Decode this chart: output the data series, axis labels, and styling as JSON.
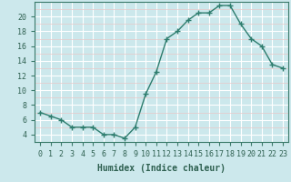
{
  "x_values": [
    0,
    1,
    2,
    3,
    4,
    5,
    6,
    7,
    8,
    9,
    10,
    11,
    12,
    13,
    14,
    15,
    16,
    17,
    18,
    19,
    20,
    21,
    22,
    23
  ],
  "y_values": [
    7,
    6.5,
    6,
    5,
    5,
    5,
    4,
    4,
    3.5,
    5,
    9.5,
    12.5,
    17,
    18,
    19.5,
    20.5,
    20.5,
    21.5,
    21.5,
    19,
    17,
    16,
    13.5,
    13
  ],
  "xlabel": "Humidex (Indice chaleur)",
  "line_color": "#2e7d6e",
  "marker": "+",
  "bg_color": "#cce8ec",
  "grid_major_color": "#ffffff",
  "grid_minor_color": "#e8c8c8",
  "spine_color": "#3a7a6a",
  "tick_color": "#2e6050",
  "ylim": [
    3,
    22
  ],
  "xlim": [
    -0.5,
    23.5
  ],
  "yticks": [
    4,
    6,
    8,
    10,
    12,
    14,
    16,
    18,
    20
  ],
  "xticks": [
    0,
    1,
    2,
    3,
    4,
    5,
    6,
    7,
    8,
    9,
    10,
    11,
    12,
    13,
    14,
    15,
    16,
    17,
    18,
    19,
    20,
    21,
    22,
    23
  ],
  "xlabel_fontsize": 7,
  "tick_fontsize": 6,
  "linewidth": 1.0,
  "markersize": 4
}
